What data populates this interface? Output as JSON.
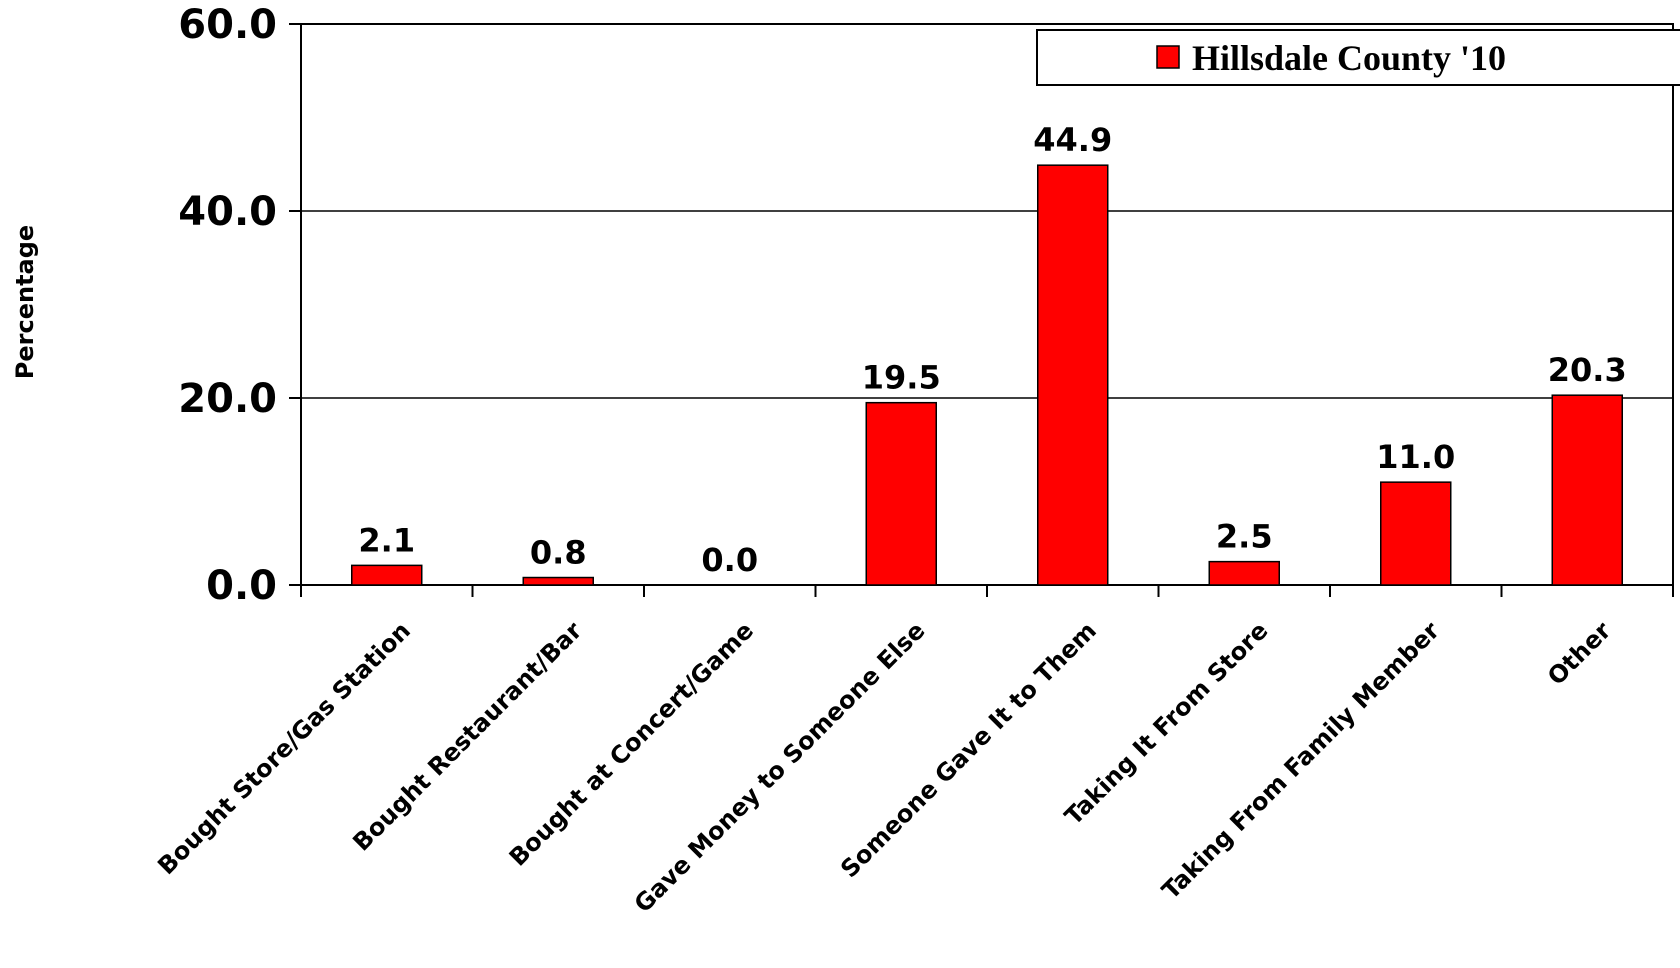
{
  "chart_data": {
    "type": "bar",
    "categories": [
      "Bought Store/Gas Station",
      "Bought Restaurant/Bar",
      "Bought at Concert/Game",
      "Gave Money to Someone Else",
      "Someone Gave It to Them",
      "Taking It From Store",
      "Taking From Family Member",
      "Other"
    ],
    "series": [
      {
        "name": "Hillsdale County '10",
        "values": [
          2.1,
          0.8,
          0.0,
          19.5,
          44.9,
          2.5,
          11.0,
          20.3
        ],
        "color": "#ff0000"
      }
    ],
    "data_labels": [
      "2.1",
      "0.8",
      "0.0",
      "19.5",
      "44.9",
      "2.5",
      "11.0",
      "20.3"
    ],
    "yticks": [
      "0.0",
      "20.0",
      "40.0",
      "60.0"
    ],
    "ylim": [
      0,
      60
    ],
    "ylabel": "Percentage",
    "xlabel": "",
    "title": "",
    "grid": true,
    "legend_position": "top-right"
  }
}
